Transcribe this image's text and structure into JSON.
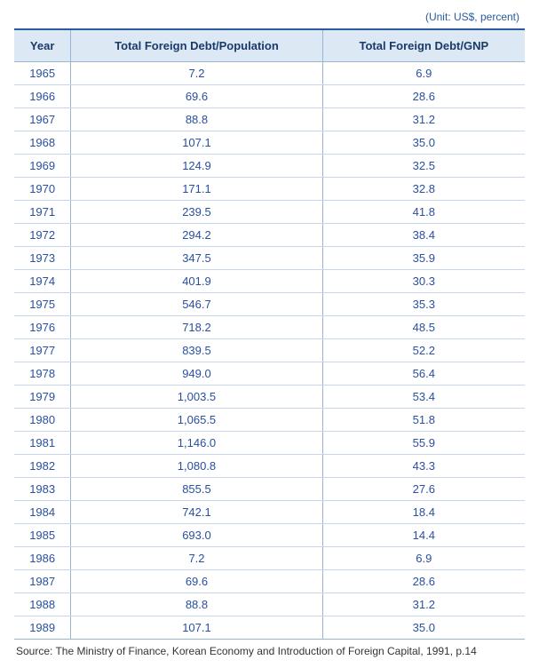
{
  "unit_label": "(Unit: US$, percent)",
  "table": {
    "columns": [
      "Year",
      "Total Foreign Debt/Population",
      "Total Foreign Debt/GNP"
    ],
    "rows": [
      [
        "1965",
        "7.2",
        "6.9"
      ],
      [
        "1966",
        "69.6",
        "28.6"
      ],
      [
        "1967",
        "88.8",
        "31.2"
      ],
      [
        "1968",
        "107.1",
        "35.0"
      ],
      [
        "1969",
        "124.9",
        "32.5"
      ],
      [
        "1970",
        "171.1",
        "32.8"
      ],
      [
        "1971",
        "239.5",
        "41.8"
      ],
      [
        "1972",
        "294.2",
        "38.4"
      ],
      [
        "1973",
        "347.5",
        "35.9"
      ],
      [
        "1974",
        "401.9",
        "30.3"
      ],
      [
        "1975",
        "546.7",
        "35.3"
      ],
      [
        "1976",
        "718.2",
        "48.5"
      ],
      [
        "1977",
        "839.5",
        "52.2"
      ],
      [
        "1978",
        "949.0",
        "56.4"
      ],
      [
        "1979",
        "1,003.5",
        "53.4"
      ],
      [
        "1980",
        "1,065.5",
        "51.8"
      ],
      [
        "1981",
        "1,146.0",
        "55.9"
      ],
      [
        "1982",
        "1,080.8",
        "43.3"
      ],
      [
        "1983",
        "855.5",
        "27.6"
      ],
      [
        "1984",
        "742.1",
        "18.4"
      ],
      [
        "1985",
        "693.0",
        "14.4"
      ],
      [
        "1986",
        "7.2",
        "6.9"
      ],
      [
        "1987",
        "69.6",
        "28.6"
      ],
      [
        "1988",
        "88.8",
        "31.2"
      ],
      [
        "1989",
        "107.1",
        "35.0"
      ]
    ]
  },
  "source_note": "Source: The Ministry of Finance, Korean Economy and Introduction of Foreign Capital, 1991, p.14",
  "styles": {
    "border_top_color": "#2a5aa0",
    "header_bg": "#dce9f5",
    "header_text": "#1a3a6a",
    "cell_text": "#2950a0",
    "cell_border": "#c7d7e9",
    "col_border": "#9ab5d4",
    "background": "#ffffff",
    "header_font_size": 13,
    "cell_font_size": 13,
    "unit_font_size": 12,
    "source_font_size": 12
  }
}
